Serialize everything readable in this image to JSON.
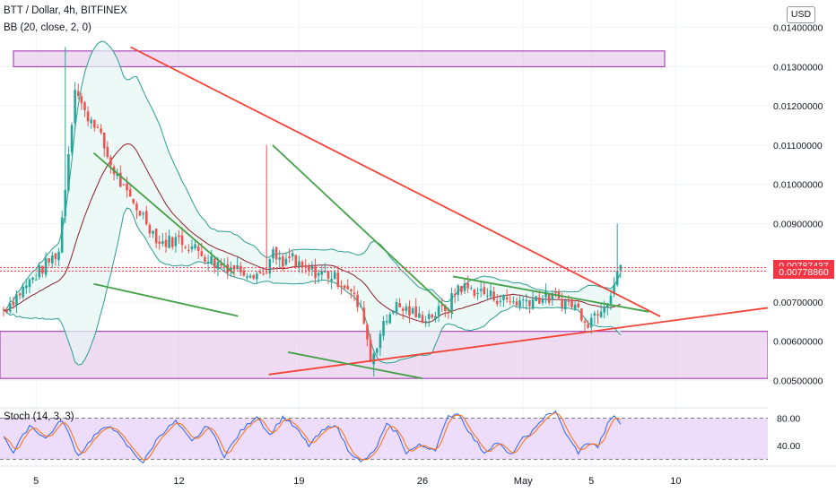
{
  "header": {
    "symbol_line": "BTT / Dollar, 4h, BITFINEX",
    "indicator_line": "BB (20, close, 2, 0)",
    "stoch_label": "Stoch (14, 3, 3)",
    "currency_button": "USD"
  },
  "colors": {
    "up": "#26a69a",
    "down": "#ef5350",
    "bb_band": "#2a9d8f",
    "bb_basis": "#8b1f2a",
    "bb_fill": "#e6f7f3",
    "trend_red": "#f44336",
    "trend_green": "#43a047",
    "zone": "#e1bee7",
    "zone_border": "#9c27b0",
    "stoch_k": "#2962ff",
    "stoch_d": "#ff6d00",
    "stoch_bg": "#e9d5fa",
    "price_label": "#f23645"
  },
  "chart_data": [
    {
      "type": "candlestick",
      "title": "BTT / Dollar, 4h, BITFINEX",
      "x_tick_labels": [
        "5",
        "12",
        "19",
        "26",
        "May",
        "5",
        "10"
      ],
      "y_tick_labels": [
        "0.01400000",
        "0.01300000",
        "0.01200000",
        "0.01100000",
        "0.01000000",
        "0.00900000",
        "0.00800000",
        "0.00700000",
        "0.00600000",
        "0.00500000"
      ],
      "y_ticks": [
        0.014,
        0.013,
        0.012,
        0.011,
        0.01,
        0.009,
        0.008,
        0.007,
        0.006,
        0.005
      ],
      "ylim": [
        0.0043,
        0.0147
      ],
      "price_labels": [
        {
          "text": "0.00787437",
          "value": 0.00787437
        },
        {
          "text": "0.00778860",
          "value": 0.0077886
        }
      ],
      "series_path": [
        [
          0,
          0.0068
        ],
        [
          9,
          0.0076
        ],
        [
          17,
          0.0083
        ],
        [
          22,
          0.0125
        ],
        [
          25,
          0.0118
        ],
        [
          28,
          0.0116
        ],
        [
          33,
          0.0105
        ],
        [
          38,
          0.0097
        ],
        [
          43,
          0.0092
        ],
        [
          48,
          0.0085
        ],
        [
          54,
          0.0086
        ],
        [
          60,
          0.0083
        ],
        [
          65,
          0.008
        ],
        [
          70,
          0.0079
        ],
        [
          75,
          0.0078
        ],
        [
          80,
          0.0077
        ],
        [
          83,
          0.0082
        ],
        [
          86,
          0.0079
        ],
        [
          89,
          0.0082
        ],
        [
          90,
          0.0079
        ],
        [
          94,
          0.0078
        ],
        [
          100,
          0.0077
        ],
        [
          106,
          0.0074
        ],
        [
          111,
          0.0066
        ],
        [
          113,
          0.0055
        ],
        [
          116,
          0.0062
        ],
        [
          120,
          0.0069
        ],
        [
          124,
          0.0068
        ],
        [
          128,
          0.0066
        ],
        [
          133,
          0.0067
        ],
        [
          137,
          0.0069
        ],
        [
          140,
          0.0074
        ],
        [
          145,
          0.0073
        ],
        [
          152,
          0.0071
        ],
        [
          158,
          0.007
        ],
        [
          164,
          0.0071
        ],
        [
          170,
          0.0071
        ],
        [
          176,
          0.0069
        ],
        [
          180,
          0.0065
        ],
        [
          183,
          0.0068
        ],
        [
          186,
          0.0071
        ],
        [
          188,
          0.0075
        ],
        [
          189,
          0.0078
        ]
      ],
      "extra_spikes": [
        {
          "i": 19,
          "value": 0.0135,
          "dir": "up"
        },
        {
          "i": 81,
          "value": 0.011,
          "dir": "up"
        },
        {
          "i": 114,
          "value": 0.0051,
          "dir": "down"
        },
        {
          "i": 189,
          "value": 0.009,
          "dir": "up"
        }
      ],
      "zones": [
        {
          "from": 0.013,
          "to": 0.0134
        },
        {
          "from": 0.00505,
          "to": 0.00625
        }
      ],
      "trend_lines": [
        {
          "color": "red",
          "points": [
            [
              0.17,
              0.0135
            ],
            [
              0.86,
              0.00663
            ]
          ]
        },
        {
          "color": "red",
          "points": [
            [
              0.35,
              0.00515
            ],
            [
              1.0,
              0.00685
            ]
          ]
        },
        {
          "color": "green",
          "points": [
            [
              0.122,
              0.0108
            ],
            [
              0.305,
              0.00772
            ]
          ]
        },
        {
          "color": "green",
          "points": [
            [
              0.122,
              0.00746
            ],
            [
              0.31,
              0.00664
            ]
          ]
        },
        {
          "color": "green",
          "points": [
            [
              0.355,
              0.011
            ],
            [
              0.59,
              0.0067
            ]
          ]
        },
        {
          "color": "green",
          "points": [
            [
              0.375,
              0.00572
            ],
            [
              0.55,
              0.00505
            ]
          ]
        },
        {
          "color": "green",
          "points": [
            [
              0.59,
              0.00765
            ],
            [
              0.845,
              0.00675
            ]
          ]
        }
      ]
    },
    {
      "type": "line",
      "title": "Stoch (14, 3, 3)",
      "y_tick_labels": [
        "80.00",
        "40.00"
      ],
      "y_ticks": [
        80,
        40
      ],
      "upper_band": 80,
      "lower_band": 20,
      "ylim": [
        10,
        95
      ],
      "k_path": [
        [
          0,
          55
        ],
        [
          3,
          30
        ],
        [
          8,
          70
        ],
        [
          13,
          50
        ],
        [
          18,
          78
        ],
        [
          23,
          25
        ],
        [
          28,
          55
        ],
        [
          33,
          70
        ],
        [
          38,
          40
        ],
        [
          43,
          15
        ],
        [
          48,
          55
        ],
        [
          53,
          75
        ],
        [
          58,
          45
        ],
        [
          63,
          70
        ],
        [
          68,
          25
        ],
        [
          73,
          60
        ],
        [
          78,
          84
        ],
        [
          82,
          55
        ],
        [
          86,
          82
        ],
        [
          90,
          65
        ],
        [
          94,
          40
        ],
        [
          98,
          60
        ],
        [
          102,
          72
        ],
        [
          106,
          35
        ],
        [
          110,
          15
        ],
        [
          114,
          30
        ],
        [
          118,
          70
        ],
        [
          121,
          60
        ],
        [
          124,
          30
        ],
        [
          128,
          40
        ],
        [
          133,
          35
        ],
        [
          137,
          82
        ],
        [
          140,
          88
        ],
        [
          144,
          55
        ],
        [
          148,
          30
        ],
        [
          152,
          45
        ],
        [
          156,
          25
        ],
        [
          160,
          50
        ],
        [
          164,
          65
        ],
        [
          167,
          86
        ],
        [
          170,
          88
        ],
        [
          174,
          50
        ],
        [
          177,
          30
        ],
        [
          180,
          45
        ],
        [
          183,
          38
        ],
        [
          186,
          70
        ],
        [
          188,
          84
        ],
        [
          190,
          72
        ]
      ]
    }
  ]
}
